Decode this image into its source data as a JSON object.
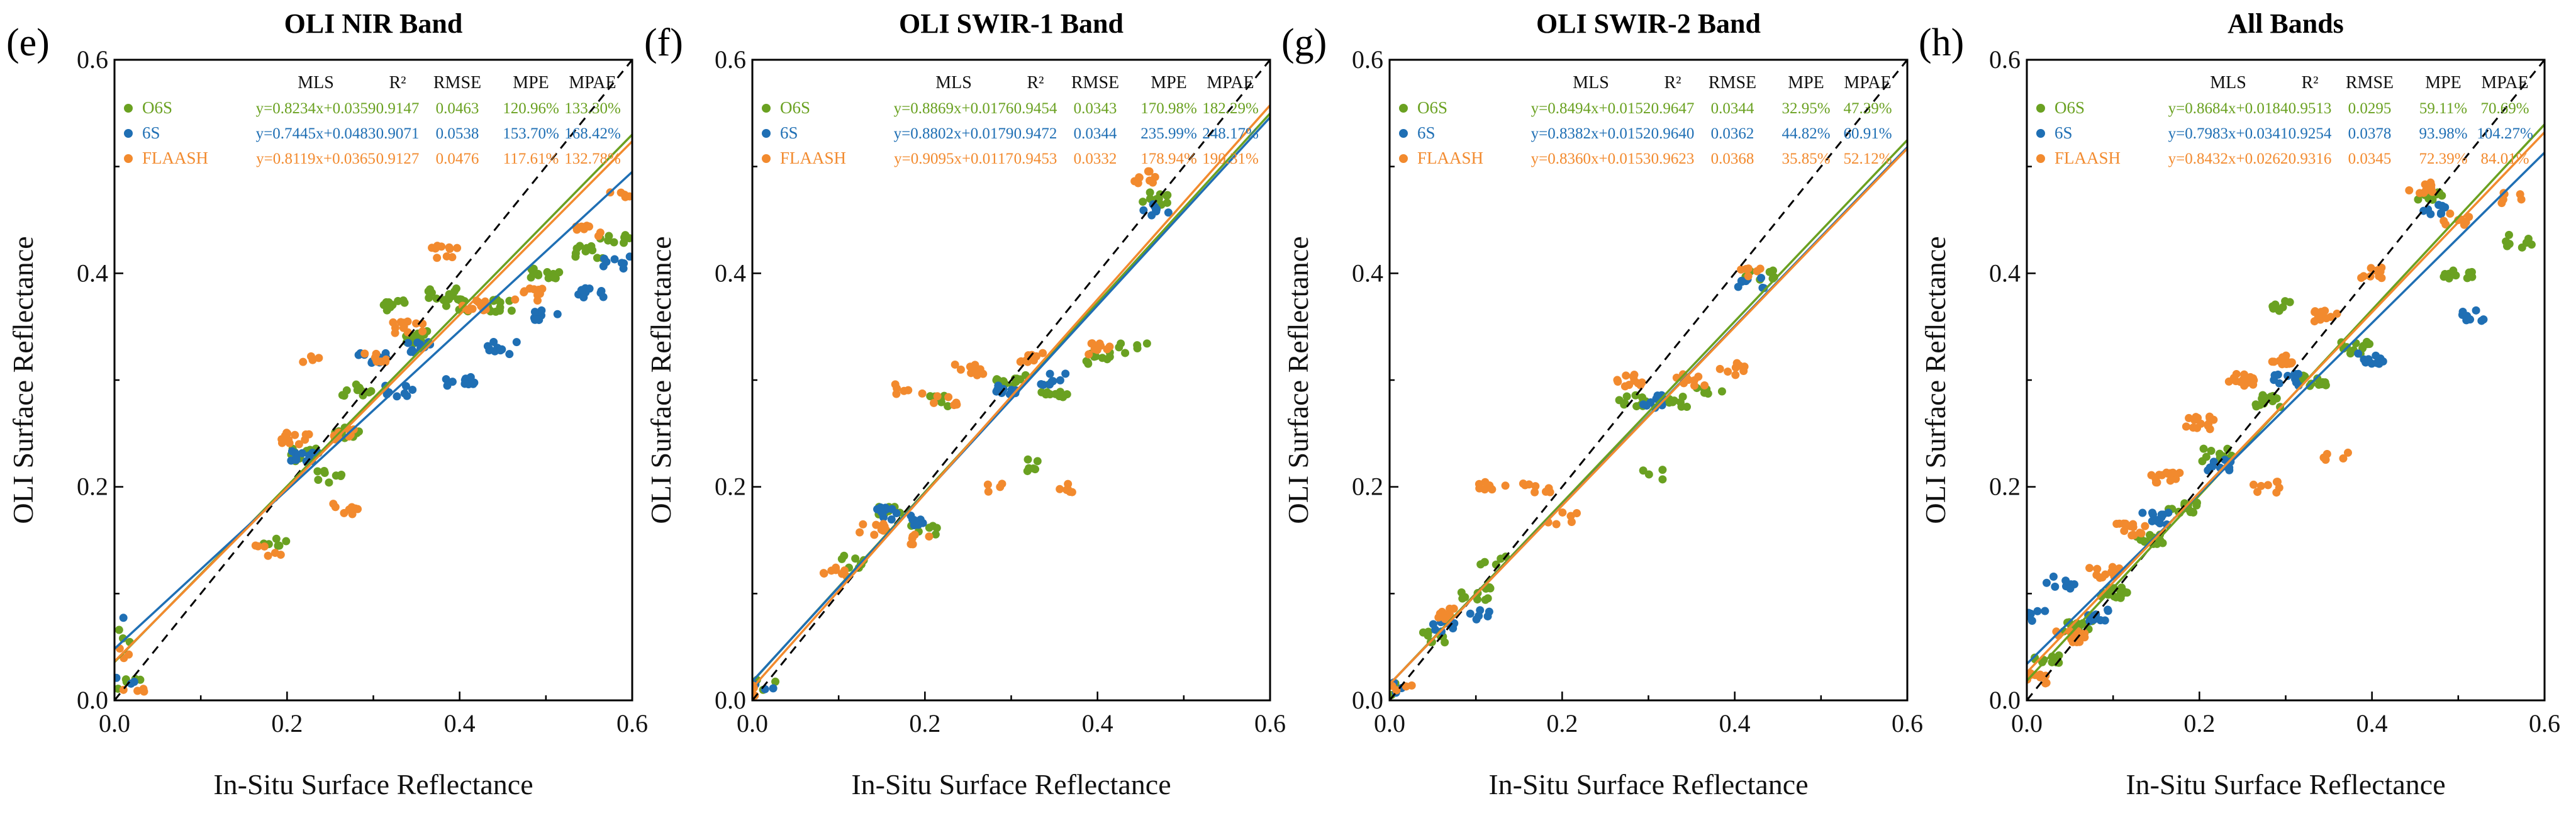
{
  "figure": {
    "colors": {
      "O6S": "#6aa121",
      "6S": "#1f6fb4",
      "FLAASH": "#f28a2e"
    },
    "stats_headers": [
      "MLS",
      "R²",
      "RMSE",
      "MPE",
      "MPAE"
    ]
  },
  "chart_data": [
    {
      "type": "scatter",
      "label": "(e)",
      "title": "OLI NIR Band",
      "xlabel": "In-Situ Surface Reflectance",
      "ylabel": "OLI Surface Reflectance",
      "xlim": [
        0,
        0.6
      ],
      "ylim": [
        0,
        0.6
      ],
      "x_ticks": [
        "0.0",
        "0.2",
        "0.4",
        "0.6"
      ],
      "y_ticks": [
        "0.0",
        "0.2",
        "0.4",
        "0.6"
      ],
      "one_to_one_line": true,
      "series": [
        {
          "name": "O6S",
          "equation": "y=0.8234x+0.0359",
          "slope": 0.8234,
          "intercept": 0.0359,
          "r2": "0.9147",
          "rmse": "0.0463",
          "mpe": "120.96%",
          "mpae": "133.30%",
          "clusters": [
            [
              0.005,
              0.06,
              3
            ],
            [
              0.02,
              0.015,
              5
            ],
            [
              0.19,
              0.15,
              6
            ],
            [
              0.22,
              0.23,
              14
            ],
            [
              0.25,
              0.21,
              8
            ],
            [
              0.27,
              0.25,
              10
            ],
            [
              0.28,
              0.29,
              10
            ],
            [
              0.32,
              0.37,
              10
            ],
            [
              0.35,
              0.34,
              12
            ],
            [
              0.38,
              0.38,
              12
            ],
            [
              0.4,
              0.37,
              10
            ],
            [
              0.45,
              0.37,
              12
            ],
            [
              0.5,
              0.4,
              12
            ],
            [
              0.55,
              0.42,
              10
            ],
            [
              0.58,
              0.43,
              8
            ]
          ]
        },
        {
          "name": "6S",
          "equation": "y=0.7445x+0.0483",
          "slope": 0.7445,
          "intercept": 0.0483,
          "r2": "0.9071",
          "rmse": "0.0538",
          "mpe": "153.70%",
          "mpae": "168.42%",
          "clusters": [
            [
              0.005,
              0.075,
              3
            ],
            [
              0.01,
              0.02,
              4
            ],
            [
              0.22,
              0.23,
              12
            ],
            [
              0.3,
              0.32,
              10
            ],
            [
              0.33,
              0.29,
              8
            ],
            [
              0.35,
              0.33,
              10
            ],
            [
              0.4,
              0.3,
              10
            ],
            [
              0.45,
              0.33,
              10
            ],
            [
              0.5,
              0.36,
              10
            ],
            [
              0.55,
              0.38,
              10
            ],
            [
              0.58,
              0.41,
              8
            ]
          ]
        },
        {
          "name": "FLAASH",
          "equation": "y=0.8119x+0.0365",
          "slope": 0.8119,
          "intercept": 0.0365,
          "r2": "0.9127",
          "rmse": "0.0476",
          "mpe": "117.61%",
          "mpae": "132.78%",
          "clusters": [
            [
              0.005,
              0.045,
              3
            ],
            [
              0.02,
              0.01,
              4
            ],
            [
              0.18,
              0.14,
              6
            ],
            [
              0.21,
              0.245,
              14
            ],
            [
              0.22,
              0.32,
              4
            ],
            [
              0.27,
              0.18,
              8
            ],
            [
              0.27,
              0.25,
              8
            ],
            [
              0.3,
              0.32,
              8
            ],
            [
              0.34,
              0.35,
              12
            ],
            [
              0.38,
              0.42,
              10
            ],
            [
              0.42,
              0.37,
              10
            ],
            [
              0.48,
              0.38,
              10
            ],
            [
              0.55,
              0.44,
              10
            ],
            [
              0.59,
              0.47,
              6
            ]
          ]
        }
      ]
    },
    {
      "type": "scatter",
      "label": "(f)",
      "title": "OLI SWIR-1 Band",
      "xlabel": "In-Situ Surface Reflectance",
      "ylabel": "OLI Surface Reflectance",
      "xlim": [
        0,
        0.6
      ],
      "ylim": [
        0,
        0.6
      ],
      "x_ticks": [
        "0.0",
        "0.2",
        "0.4",
        "0.6"
      ],
      "y_ticks": [
        "0.0",
        "0.2",
        "0.4",
        "0.6"
      ],
      "one_to_one_line": true,
      "series": [
        {
          "name": "O6S",
          "equation": "y=0.8869x+0.0176",
          "slope": 0.8869,
          "intercept": 0.0176,
          "r2": "0.9454",
          "rmse": "0.0343",
          "mpe": "170.98%",
          "mpae": "182.29%",
          "clusters": [
            [
              0.01,
              0.015,
              4
            ],
            [
              0.12,
              0.13,
              8
            ],
            [
              0.16,
              0.18,
              10
            ],
            [
              0.2,
              0.16,
              6
            ],
            [
              0.22,
              0.28,
              6
            ],
            [
              0.3,
              0.3,
              12
            ],
            [
              0.35,
              0.29,
              10
            ],
            [
              0.33,
              0.22,
              6
            ],
            [
              0.4,
              0.32,
              10
            ],
            [
              0.47,
              0.47,
              10
            ],
            [
              0.44,
              0.33,
              6
            ]
          ]
        },
        {
          "name": "6S",
          "equation": "y=0.8802x+0.0179",
          "slope": 0.8802,
          "intercept": 0.0179,
          "r2": "0.9472",
          "rmse": "0.0344",
          "mpe": "235.99%",
          "mpae": "248.17%",
          "clusters": [
            [
              0.01,
              0.012,
              4
            ],
            [
              0.15,
              0.175,
              10
            ],
            [
              0.2,
              0.17,
              8
            ],
            [
              0.3,
              0.29,
              10
            ],
            [
              0.35,
              0.3,
              8
            ],
            [
              0.47,
              0.46,
              8
            ]
          ]
        },
        {
          "name": "FLAASH",
          "equation": "y=0.9095x+0.0117",
          "slope": 0.9095,
          "intercept": 0.0117,
          "r2": "0.9453",
          "rmse": "0.0332",
          "mpe": "178.94%",
          "mpae": "190.31%",
          "clusters": [
            [
              0.01,
              0.01,
              4
            ],
            [
              0.1,
              0.12,
              8
            ],
            [
              0.14,
              0.16,
              10
            ],
            [
              0.18,
              0.29,
              6
            ],
            [
              0.22,
              0.28,
              6
            ],
            [
              0.2,
              0.15,
              6
            ],
            [
              0.25,
              0.31,
              10
            ],
            [
              0.32,
              0.32,
              12
            ],
            [
              0.4,
              0.33,
              10
            ],
            [
              0.45,
              0.49,
              10
            ],
            [
              0.36,
              0.2,
              6
            ],
            [
              0.28,
              0.2,
              4
            ]
          ]
        }
      ]
    },
    {
      "type": "scatter",
      "label": "(g)",
      "title": "OLI SWIR-2 Band",
      "xlabel": "In-Situ Surface Reflectance",
      "ylabel": "OLI Surface Reflectance",
      "xlim": [
        0,
        0.6
      ],
      "ylim": [
        0,
        0.6
      ],
      "x_ticks": [
        "0.0",
        "0.2",
        "0.4",
        "0.6"
      ],
      "y_ticks": [
        "0.0",
        "0.2",
        "0.4",
        "0.6"
      ],
      "one_to_one_line": true,
      "series": [
        {
          "name": "O6S",
          "equation": "y=0.8494x+0.0152",
          "slope": 0.8494,
          "intercept": 0.0152,
          "r2": "0.9647",
          "rmse": "0.0344",
          "mpe": "32.95%",
          "mpae": "47.39%",
          "clusters": [
            [
              0.01,
              0.01,
              4
            ],
            [
              0.05,
              0.06,
              8
            ],
            [
              0.1,
              0.1,
              10
            ],
            [
              0.12,
              0.13,
              6
            ],
            [
              0.28,
              0.28,
              12
            ],
            [
              0.33,
              0.28,
              10
            ],
            [
              0.37,
              0.29,
              6
            ],
            [
              0.43,
              0.4,
              8
            ],
            [
              0.3,
              0.21,
              4
            ]
          ]
        },
        {
          "name": "6S",
          "equation": "y=0.8382x+0.0152",
          "slope": 0.8382,
          "intercept": 0.0152,
          "r2": "0.9640",
          "rmse": "0.0362",
          "mpe": "44.82%",
          "mpae": "60.91%",
          "clusters": [
            [
              0.01,
              0.012,
              4
            ],
            [
              0.06,
              0.07,
              8
            ],
            [
              0.1,
              0.08,
              6
            ],
            [
              0.3,
              0.28,
              10
            ],
            [
              0.42,
              0.39,
              8
            ]
          ]
        },
        {
          "name": "FLAASH",
          "equation": "y=0.8360x+0.0153",
          "slope": 0.836,
          "intercept": 0.0153,
          "r2": "0.9623",
          "rmse": "0.0368",
          "mpe": "35.85%",
          "mpae": "52.12%",
          "clusters": [
            [
              0.01,
              0.01,
              4
            ],
            [
              0.07,
              0.08,
              10
            ],
            [
              0.12,
              0.2,
              8
            ],
            [
              0.17,
              0.2,
              8
            ],
            [
              0.2,
              0.17,
              6
            ],
            [
              0.28,
              0.3,
              12
            ],
            [
              0.35,
              0.3,
              10
            ],
            [
              0.4,
              0.31,
              8
            ],
            [
              0.42,
              0.4,
              6
            ]
          ]
        }
      ]
    },
    {
      "type": "scatter",
      "label": "(h)",
      "title": "All Bands",
      "xlabel": "In-Situ Surface Reflectance",
      "ylabel": "OLI Surface Reflectance",
      "xlim": [
        0,
        0.6
      ],
      "ylim": [
        0,
        0.6
      ],
      "x_ticks": [
        "0.0",
        "0.2",
        "0.4",
        "0.6"
      ],
      "y_ticks": [
        "0.0",
        "0.2",
        "0.4",
        "0.6"
      ],
      "one_to_one_line": true,
      "series": [
        {
          "name": "O6S",
          "equation": "y=0.8684x+0.0184",
          "slope": 0.8684,
          "intercept": 0.0184,
          "r2": "0.9513",
          "rmse": "0.0295",
          "mpe": "59.11%",
          "mpae": "70.69%",
          "clusters": [
            [
              0.02,
              0.04,
              10
            ],
            [
              0.06,
              0.07,
              12
            ],
            [
              0.1,
              0.1,
              14
            ],
            [
              0.14,
              0.15,
              14
            ],
            [
              0.18,
              0.18,
              14
            ],
            [
              0.22,
              0.23,
              14
            ],
            [
              0.28,
              0.28,
              14
            ],
            [
              0.33,
              0.3,
              12
            ],
            [
              0.38,
              0.33,
              12
            ],
            [
              0.47,
              0.47,
              10
            ],
            [
              0.5,
              0.4,
              10
            ],
            [
              0.57,
              0.43,
              8
            ],
            [
              0.3,
              0.37,
              8
            ]
          ]
        },
        {
          "name": "6S",
          "equation": "y=0.7983x+0.0341",
          "slope": 0.7983,
          "intercept": 0.0341,
          "r2": "0.9254",
          "rmse": "0.0378",
          "mpe": "93.98%",
          "mpae": "104.27%",
          "clusters": [
            [
              0.01,
              0.08,
              8
            ],
            [
              0.04,
              0.11,
              8
            ],
            [
              0.08,
              0.08,
              10
            ],
            [
              0.15,
              0.17,
              12
            ],
            [
              0.22,
              0.22,
              10
            ],
            [
              0.3,
              0.3,
              10
            ],
            [
              0.4,
              0.32,
              10
            ],
            [
              0.47,
              0.46,
              8
            ],
            [
              0.52,
              0.36,
              8
            ]
          ]
        },
        {
          "name": "FLAASH",
          "equation": "y=0.8432x+0.0262",
          "slope": 0.8432,
          "intercept": 0.0262,
          "r2": "0.9316",
          "rmse": "0.0345",
          "mpe": "72.39%",
          "mpae": "84.01%",
          "clusters": [
            [
              0.01,
              0.02,
              10
            ],
            [
              0.05,
              0.06,
              14
            ],
            [
              0.09,
              0.12,
              14
            ],
            [
              0.12,
              0.16,
              14
            ],
            [
              0.16,
              0.21,
              14
            ],
            [
              0.2,
              0.26,
              14
            ],
            [
              0.25,
              0.3,
              14
            ],
            [
              0.3,
              0.32,
              14
            ],
            [
              0.35,
              0.36,
              12
            ],
            [
              0.4,
              0.4,
              10
            ],
            [
              0.46,
              0.48,
              10
            ],
            [
              0.5,
              0.45,
              8
            ],
            [
              0.28,
              0.2,
              8
            ],
            [
              0.36,
              0.23,
              6
            ],
            [
              0.56,
              0.47,
              6
            ]
          ]
        }
      ]
    }
  ]
}
